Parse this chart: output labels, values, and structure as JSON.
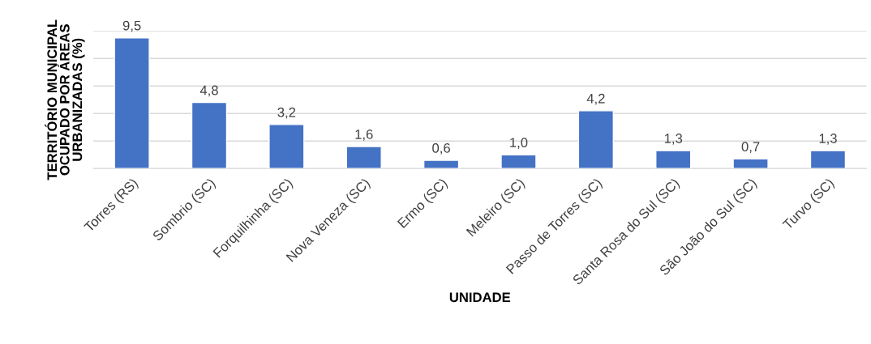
{
  "chart_data": {
    "type": "bar",
    "xlabel": "UNIDADE",
    "ylabel": "TERRITÓRIO MUNICIPAL\nOCUPADO POR ÁREAS\nURBANIZADAS (%)",
    "categories": [
      "Torres (RS)",
      "Sombrio (SC)",
      "Forquilhinha (SC)",
      "Nova Veneza (SC)",
      "Ermo (SC)",
      "Meleiro (SC)",
      "Passo de Torres (SC)",
      "Santa Rosa do Sul (SC)",
      "São João do Sul (SC)",
      "Turvo (SC)"
    ],
    "values": [
      9.5,
      4.8,
      3.2,
      1.6,
      0.6,
      1.0,
      4.2,
      1.3,
      0.7,
      1.3
    ],
    "value_labels": [
      "9,5",
      "4,8",
      "3,2",
      "1,6",
      "0,6",
      "1,0",
      "4,2",
      "1,3",
      "0,7",
      "1,3"
    ],
    "color": "#4472c4",
    "ylim": [
      0,
      10
    ],
    "yticks": [
      {
        "value": 0,
        "label": null
      },
      {
        "value": 2,
        "label": null
      },
      {
        "value": 4,
        "label": null
      },
      {
        "value": 6,
        "label": null
      },
      {
        "value": 8,
        "label": null
      },
      {
        "value": 10,
        "label": null
      }
    ],
    "grid": "y"
  }
}
